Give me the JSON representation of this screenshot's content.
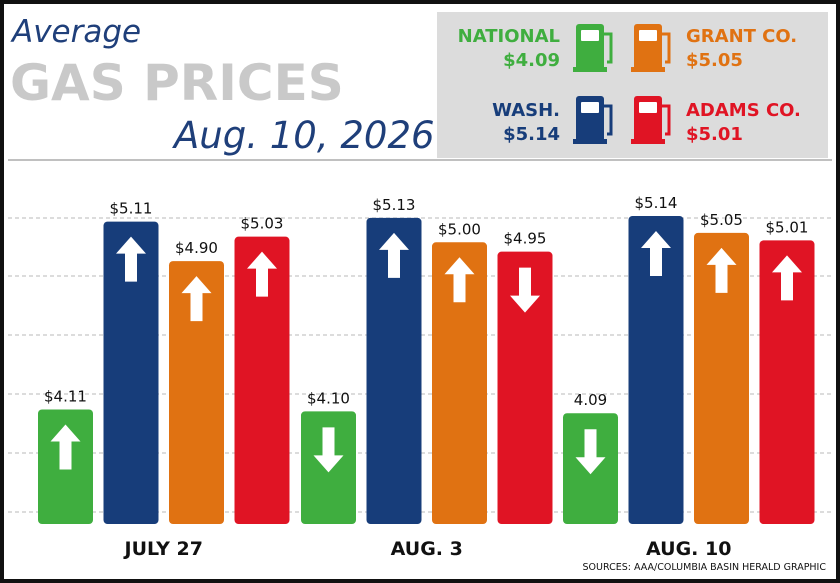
{
  "header": {
    "line1": "Average",
    "line2": "GAS PRICES",
    "line3": "Aug. 10, 2026"
  },
  "legend": [
    {
      "name": "NATIONAL",
      "value": "$4.09",
      "color": "#3fae3f",
      "icon": "gas-pump-icon"
    },
    {
      "name": "GRANT CO.",
      "value": "$5.05",
      "color": "#e07212",
      "icon": "gas-pump-icon"
    },
    {
      "name": "WASH.",
      "value": "$5.14",
      "color": "#173d7a",
      "icon": "gas-pump-icon"
    },
    {
      "name": "ADAMS CO.",
      "value": "$5.01",
      "color": "#e01424",
      "icon": "gas-pump-icon"
    }
  ],
  "source": "SOURCES: AAA/COLUMBIA BASIN HERALD GRAPHIC",
  "chart_data": {
    "type": "bar",
    "categories": [
      "JULY 27",
      "AUG. 3",
      "AUG. 10"
    ],
    "series": [
      {
        "name": "NATIONAL",
        "color": "#3fae3f",
        "values": [
          4.11,
          4.1,
          4.09
        ],
        "labels": [
          "$4.11",
          "$4.10",
          "4.09"
        ],
        "trend": [
          "up",
          "down",
          "down"
        ]
      },
      {
        "name": "WASH.",
        "color": "#173d7a",
        "values": [
          5.11,
          5.13,
          5.14
        ],
        "labels": [
          "$5.11",
          "$5.13",
          "$5.14"
        ],
        "trend": [
          "up",
          "up",
          "up"
        ]
      },
      {
        "name": "GRANT CO.",
        "color": "#e07212",
        "values": [
          4.9,
          5.0,
          5.05
        ],
        "labels": [
          "$4.90",
          "$5.00",
          "$5.05"
        ],
        "trend": [
          "up",
          "up",
          "up"
        ]
      },
      {
        "name": "ADAMS CO.",
        "color": "#e01424",
        "values": [
          5.03,
          4.95,
          5.01
        ],
        "labels": [
          "$5.03",
          "$4.95",
          "$5.01"
        ],
        "trend": [
          "up",
          "down",
          "up"
        ]
      }
    ],
    "grid": true,
    "legend_position": "top-right"
  }
}
